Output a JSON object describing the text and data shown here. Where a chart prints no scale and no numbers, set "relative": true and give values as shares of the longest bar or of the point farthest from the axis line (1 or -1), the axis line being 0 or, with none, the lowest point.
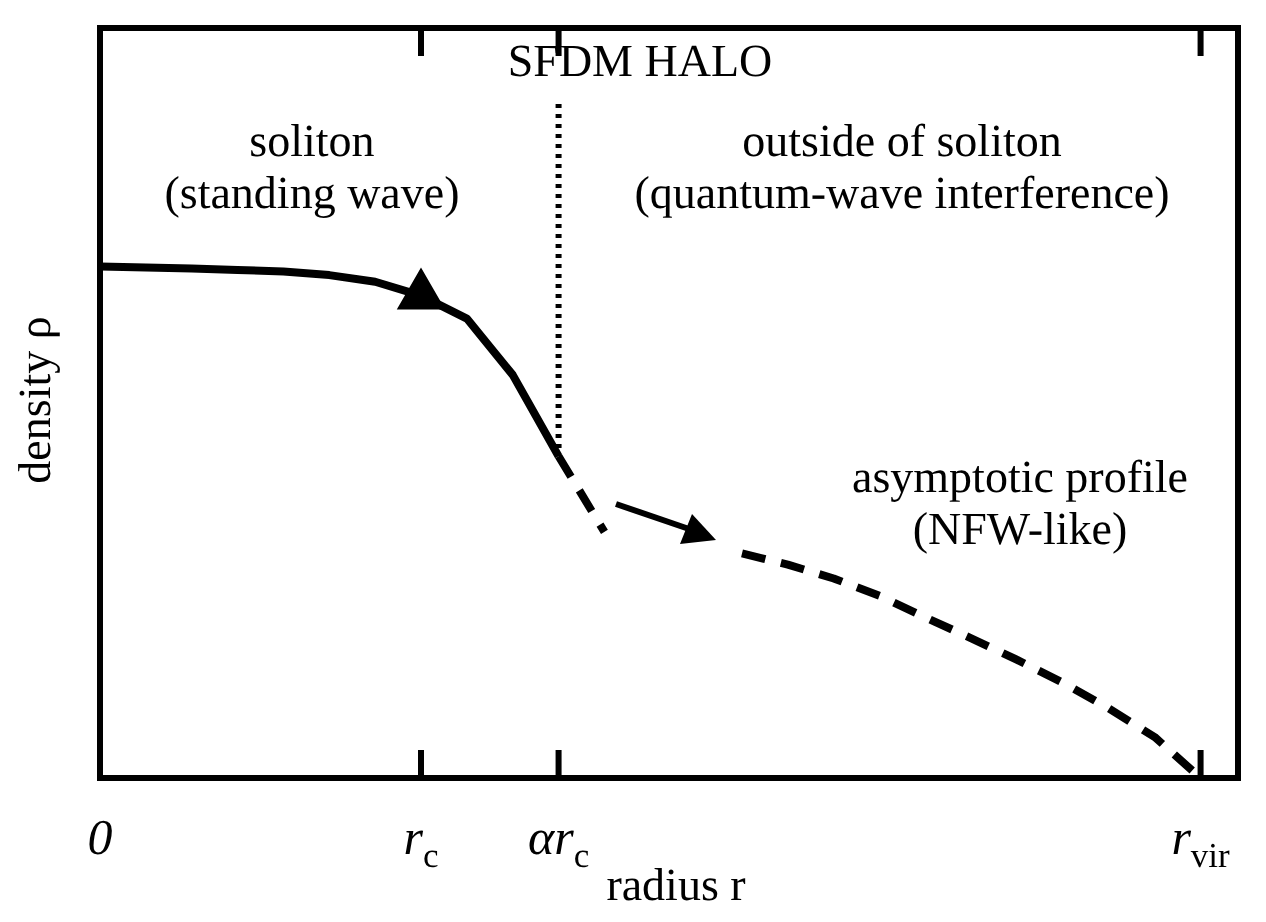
{
  "chart_data": {
    "type": "line",
    "title": "SFDM HALO",
    "xlabel": "radius r",
    "ylabel": "density ρ",
    "relative": true,
    "categories": [
      "0",
      null,
      null,
      null,
      null,
      null,
      null,
      "r$_{c}$",
      null,
      null,
      "αr$_{c}$",
      null,
      null,
      null,
      null,
      null,
      null,
      null,
      null,
      null,
      null,
      null,
      null,
      null,
      "r$_{vir}$"
    ],
    "series": [
      {
        "color": "#000000",
        "line_style": "solid",
        "values": [
          1,
          0.998,
          0.996,
          0.993,
          0.99,
          0.983,
          0.97,
          0.943,
          0.898,
          0.788,
          0.629,
          null,
          null,
          null,
          null,
          null,
          null,
          null,
          null,
          null,
          null,
          null,
          null,
          null,
          null
        ]
      },
      {
        "color": "#000000",
        "line_style": "dashed",
        "values": [
          null,
          null,
          null,
          null,
          null,
          null,
          null,
          null,
          null,
          null,
          0.629,
          0.481,
          null,
          null,
          0.439,
          0.417,
          0.39,
          0.356,
          0.314,
          0.273,
          0.231,
          0.186,
          0.136,
          0.08,
          0
        ]
      },
      {
        "type": "scatter",
        "color": "#000000",
        "marker": "triangle",
        "x": [
          "r$_{c}$"
        ],
        "values": [
          0.943
        ]
      }
    ],
    "ref_lines": [
      {
        "axis": "x",
        "value": "αr$_{c}$",
        "line_style": "dotted",
        "color": "#000000"
      }
    ],
    "annotations": [
      "soliton\n(standing wave)",
      "outside of soliton\n(quantum-wave interference)",
      "asymptotic profile\n(NFW-like)"
    ]
  }
}
